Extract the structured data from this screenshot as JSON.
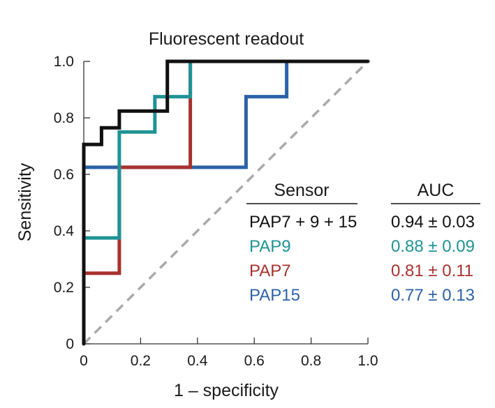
{
  "chart_data": {
    "type": "line",
    "title": "Fluorescent readout",
    "xlabel": "1 – specificity",
    "ylabel": "Sensitivity",
    "xlim": [
      0,
      1
    ],
    "ylim": [
      0,
      1
    ],
    "x_ticks": [
      0,
      0.2,
      0.4,
      0.6,
      0.8,
      1.0
    ],
    "x_tick_labels": [
      "0",
      "0.2",
      "0.4",
      "0.6",
      "0.8",
      "1.0"
    ],
    "y_ticks": [
      0,
      0.2,
      0.4,
      0.6,
      0.8,
      1.0
    ],
    "y_tick_labels": [
      "0",
      "0.2",
      "0.4",
      "0.6",
      "0.8",
      "1.0"
    ],
    "grid": false,
    "reference_line": {
      "style": "dashed",
      "color": "#aaaaaa",
      "points": [
        [
          0,
          0
        ],
        [
          1,
          1
        ]
      ]
    },
    "legend": {
      "placement": "lower-right",
      "sensor_header": "Sensor",
      "auc_header": "AUC"
    },
    "series": [
      {
        "name": "PAP15",
        "auc": "0.77 ± 0.13",
        "color": "#2c62a8",
        "points": [
          [
            0,
            0
          ],
          [
            0,
            0.625
          ],
          [
            0.571,
            0.625
          ],
          [
            0.571,
            0.875
          ],
          [
            0.714,
            0.875
          ],
          [
            0.714,
            1.0
          ],
          [
            1.0,
            1.0
          ]
        ]
      },
      {
        "name": "PAP7",
        "auc": "0.81 ± 0.11",
        "color": "#a8322e",
        "points": [
          [
            0,
            0
          ],
          [
            0,
            0.25
          ],
          [
            0.125,
            0.25
          ],
          [
            0.125,
            0.625
          ],
          [
            0.375,
            0.625
          ],
          [
            0.375,
            1.0
          ],
          [
            1.0,
            1.0
          ]
        ]
      },
      {
        "name": "PAP9",
        "auc": "0.88 ± 0.09",
        "color": "#1f9395",
        "points": [
          [
            0,
            0
          ],
          [
            0,
            0.375
          ],
          [
            0.125,
            0.375
          ],
          [
            0.125,
            0.75
          ],
          [
            0.25,
            0.75
          ],
          [
            0.25,
            0.875
          ],
          [
            0.375,
            0.875
          ],
          [
            0.375,
            1.0
          ],
          [
            1.0,
            1.0
          ]
        ]
      },
      {
        "name": "PAP7 + 9 + 15",
        "auc": "0.94 ± 0.03",
        "color": "#111111",
        "points": [
          [
            0,
            0
          ],
          [
            0,
            0.706
          ],
          [
            0.0625,
            0.706
          ],
          [
            0.0625,
            0.765
          ],
          [
            0.125,
            0.765
          ],
          [
            0.125,
            0.824
          ],
          [
            0.294,
            0.824
          ],
          [
            0.294,
            1.0
          ],
          [
            1.0,
            1.0
          ]
        ]
      }
    ],
    "legend_order": [
      "PAP7 + 9 + 15",
      "PAP9",
      "PAP7",
      "PAP15"
    ]
  }
}
